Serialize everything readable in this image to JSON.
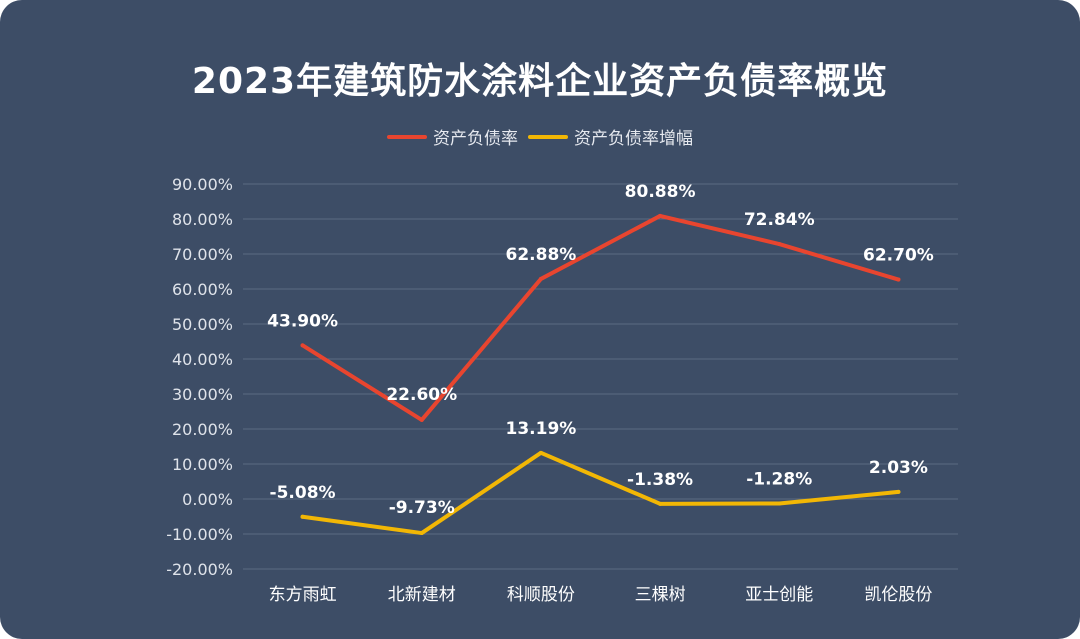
{
  "chart_data": {
    "type": "line",
    "title": "2023年建筑防水涂料企业资产负债率概览",
    "categories": [
      "东方雨虹",
      "北新建材",
      "科顺股份",
      "三棵树",
      "亚士创能",
      "凯伦股份"
    ],
    "series": [
      {
        "name": "资产负债率",
        "color": "#e8452f",
        "values": [
          43.9,
          22.6,
          62.88,
          80.88,
          72.84,
          62.7
        ],
        "labels": [
          "43.90%",
          "22.60%",
          "62.88%",
          "80.88%",
          "72.84%",
          "62.70%"
        ]
      },
      {
        "name": "资产负债率增幅",
        "color": "#f2b705",
        "values": [
          -5.08,
          -9.73,
          13.19,
          -1.38,
          -1.28,
          2.03
        ],
        "labels": [
          "-5.08%",
          "-9.73%",
          "13.19%",
          "-1.38%",
          "-1.28%",
          "2.03%"
        ]
      }
    ],
    "ylim": [
      -20,
      90
    ],
    "yticks": [
      "-20.00%",
      "-10.00%",
      "0.00%",
      "10.00%",
      "20.00%",
      "30.00%",
      "40.00%",
      "50.00%",
      "60.00%",
      "70.00%",
      "80.00%",
      "90.00%"
    ],
    "grid": true,
    "legend_position": "top"
  }
}
